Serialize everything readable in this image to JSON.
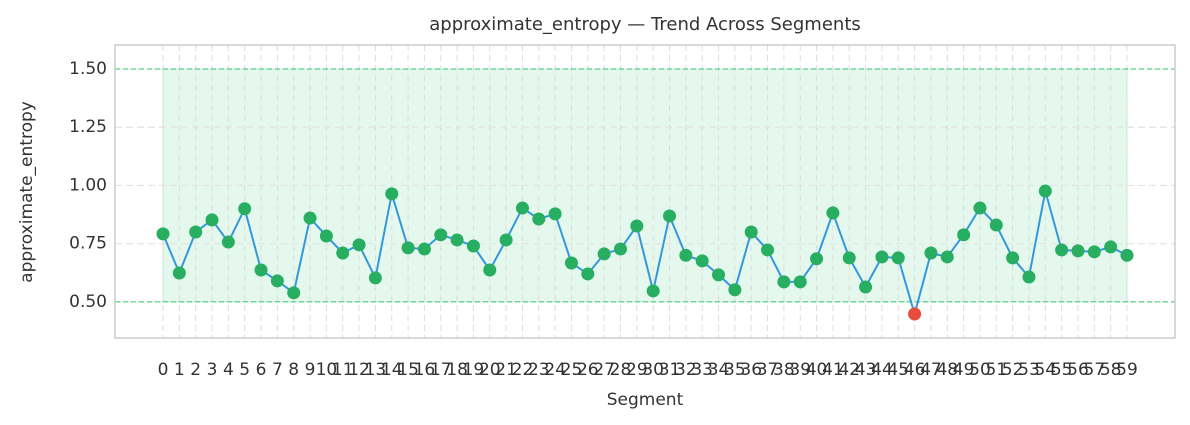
{
  "chart_data": {
    "type": "line",
    "title": "approximate_entropy — Trend Across Segments",
    "x_label": "Segment",
    "y_label": "approximate_entropy",
    "categories": [
      "0",
      "1",
      "2",
      "3",
      "4",
      "5",
      "6",
      "7",
      "8",
      "9",
      "10",
      "11",
      "12",
      "13",
      "14",
      "15",
      "16",
      "17",
      "18",
      "19",
      "20",
      "21",
      "22",
      "23",
      "24",
      "25",
      "26",
      "27",
      "28",
      "29",
      "30",
      "31",
      "32",
      "33",
      "34",
      "35",
      "36",
      "37",
      "38",
      "39",
      "40",
      "41",
      "42",
      "43",
      "44",
      "45",
      "46",
      "47",
      "48",
      "49",
      "50",
      "51",
      "52",
      "53",
      "54",
      "55",
      "56",
      "57",
      "58",
      "59"
    ],
    "values": [
      0.792,
      0.624,
      0.8,
      0.852,
      0.757,
      0.9,
      0.637,
      0.59,
      0.539,
      0.86,
      0.783,
      0.71,
      0.745,
      0.603,
      0.964,
      0.732,
      0.727,
      0.788,
      0.766,
      0.74,
      0.637,
      0.766,
      0.903,
      0.856,
      0.878,
      0.667,
      0.62,
      0.706,
      0.727,
      0.826,
      0.547,
      0.869,
      0.7,
      0.676,
      0.616,
      0.552,
      0.8,
      0.723,
      0.586,
      0.586,
      0.685,
      0.882,
      0.689,
      0.564,
      0.693,
      0.689,
      0.448,
      0.71,
      0.693,
      0.788,
      0.903,
      0.83,
      0.689,
      0.607,
      0.976,
      0.723,
      0.719,
      0.715,
      0.736,
      0.7
    ],
    "normal_range": [
      0.5,
      1.5
    ],
    "line_color": "#3498db",
    "point_color": "#27ae60",
    "outlier_color": "#e74c3c",
    "band_color": "#2ecc71",
    "ylim": [
      0.345,
      1.603
    ],
    "yticks": [
      {
        "value": 0.5,
        "label": "0.50"
      },
      {
        "value": 0.75,
        "label": "0.75"
      },
      {
        "value": 1.0,
        "label": "1.00"
      },
      {
        "value": 1.25,
        "label": "1.25"
      },
      {
        "value": 1.5,
        "label": "1.50"
      }
    ],
    "grid": true
  }
}
